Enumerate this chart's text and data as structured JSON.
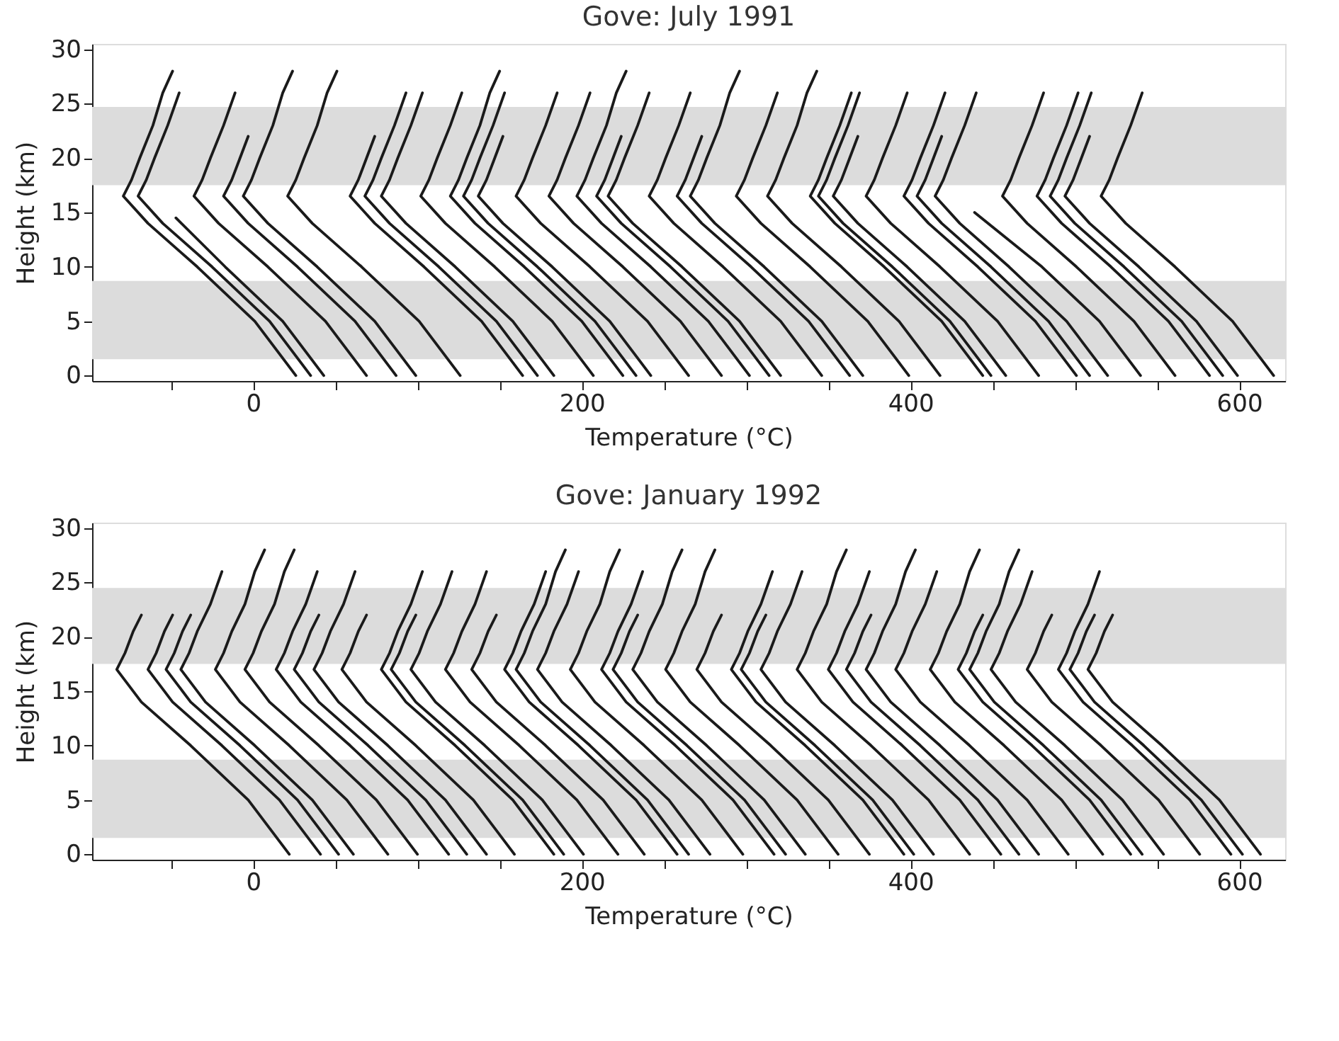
{
  "chart_data": [
    {
      "type": "line",
      "title": "Gove: July 1991",
      "xlabel": "Temperature (°C)",
      "ylabel": "Height (km)",
      "color": "#1a1a1a",
      "xlim": [
        -98,
        628
      ],
      "ylim": [
        -0.5,
        30.5
      ],
      "xticks": [
        {
          "value": -50,
          "label": null
        },
        0,
        {
          "value": 50,
          "label": null
        },
        {
          "value": 100,
          "label": null
        },
        {
          "value": 150,
          "label": null
        },
        200,
        {
          "value": 250,
          "label": null
        },
        {
          "value": 300,
          "label": null
        },
        {
          "value": 350,
          "label": null
        },
        400,
        {
          "value": 450,
          "label": null
        },
        {
          "value": 500,
          "label": null
        },
        {
          "value": 550,
          "label": null
        },
        600
      ],
      "yticks": [
        0,
        5,
        10,
        15,
        20,
        25,
        30
      ],
      "bands": [
        {
          "axis": "y",
          "from": 1.5,
          "to": 8.7,
          "color": "#dcdcdc"
        },
        {
          "axis": "y",
          "from": 17.5,
          "to": 24.7,
          "color": "#dcdcdc"
        }
      ],
      "series": [
        {
          "x": [
            26,
            1,
            -34,
            -64,
            -79,
            -74,
            -69,
            -61,
            -55,
            -49
          ],
          "values": [
            0,
            5,
            10,
            14,
            16.5,
            18,
            20,
            23,
            26,
            28
          ]
        },
        {
          "x": [
            35,
            10,
            -25,
            -55,
            -70,
            -65,
            -60,
            -52,
            -45
          ],
          "values": [
            0,
            5,
            10,
            14,
            16.5,
            18,
            20,
            23,
            26
          ]
        },
        {
          "x": [
            43,
            18,
            -17,
            -47
          ],
          "values": [
            0,
            5,
            10,
            14.5
          ]
        },
        {
          "x": [
            69,
            44,
            9,
            -21,
            -36,
            -31,
            -26,
            -18,
            -11
          ],
          "values": [
            0,
            5,
            10,
            14,
            16.5,
            18,
            20,
            23,
            26
          ]
        },
        {
          "x": [
            87,
            62,
            27,
            -3,
            -18,
            -13,
            -8,
            -3
          ],
          "values": [
            0,
            5,
            10,
            14,
            16.5,
            18,
            20,
            22
          ]
        },
        {
          "x": [
            99,
            74,
            39,
            9,
            -6,
            -1,
            4,
            12,
            18,
            24
          ],
          "values": [
            0,
            5,
            10,
            14,
            16.5,
            18,
            20,
            23,
            26,
            28
          ]
        },
        {
          "x": [
            126,
            101,
            66,
            36,
            21,
            26,
            31,
            39,
            45,
            51
          ],
          "values": [
            0,
            5,
            10,
            14,
            16.5,
            18,
            20,
            23,
            26,
            28
          ]
        },
        {
          "x": [
            164,
            139,
            104,
            74,
            59,
            64,
            69,
            74
          ],
          "values": [
            0,
            5,
            10,
            14,
            16.5,
            18,
            20,
            22
          ]
        },
        {
          "x": [
            173,
            148,
            113,
            83,
            68,
            73,
            78,
            86,
            93
          ],
          "values": [
            0,
            5,
            10,
            14,
            16.5,
            18,
            20,
            23,
            26
          ]
        },
        {
          "x": [
            183,
            158,
            123,
            93,
            78,
            83,
            88,
            96,
            103
          ],
          "values": [
            0,
            5,
            10,
            14,
            16.5,
            18,
            20,
            23,
            26
          ]
        },
        {
          "x": [
            207,
            182,
            147,
            117,
            102,
            107,
            112,
            120,
            127
          ],
          "values": [
            0,
            5,
            10,
            14,
            16.5,
            18,
            20,
            23,
            26
          ]
        },
        {
          "x": [
            225,
            200,
            165,
            135,
            120,
            125,
            130,
            138,
            144,
            150
          ],
          "values": [
            0,
            5,
            10,
            14,
            16.5,
            18,
            20,
            23,
            26,
            28
          ]
        },
        {
          "x": [
            233,
            208,
            173,
            143,
            128,
            133,
            138,
            146,
            153
          ],
          "values": [
            0,
            5,
            10,
            14,
            16.5,
            18,
            20,
            23,
            26
          ]
        },
        {
          "x": [
            242,
            217,
            182,
            152,
            137,
            142,
            147,
            152
          ],
          "values": [
            0,
            5,
            10,
            14,
            16.5,
            18,
            20,
            22
          ]
        },
        {
          "x": [
            265,
            240,
            205,
            175,
            160,
            165,
            170,
            178,
            185
          ],
          "values": [
            0,
            5,
            10,
            14,
            16.5,
            18,
            20,
            23,
            26
          ]
        },
        {
          "x": [
            285,
            260,
            225,
            195,
            180,
            185,
            190,
            198,
            205
          ],
          "values": [
            0,
            5,
            10,
            14,
            16.5,
            18,
            20,
            23,
            26
          ]
        },
        {
          "x": [
            302,
            277,
            242,
            212,
            197,
            202,
            207,
            215,
            221,
            227
          ],
          "values": [
            0,
            5,
            10,
            14,
            16.5,
            18,
            20,
            23,
            26,
            28
          ]
        },
        {
          "x": [
            314,
            289,
            254,
            224,
            209,
            214,
            219,
            224
          ],
          "values": [
            0,
            5,
            10,
            14,
            16.5,
            18,
            20,
            22
          ]
        },
        {
          "x": [
            321,
            296,
            261,
            231,
            216,
            221,
            226,
            234,
            241
          ],
          "values": [
            0,
            5,
            10,
            14,
            16.5,
            18,
            20,
            23,
            26
          ]
        },
        {
          "x": [
            346,
            321,
            286,
            256,
            241,
            246,
            251,
            259,
            266
          ],
          "values": [
            0,
            5,
            10,
            14,
            16.5,
            18,
            20,
            23,
            26
          ]
        },
        {
          "x": [
            363,
            338,
            303,
            273,
            258,
            263,
            268,
            273
          ],
          "values": [
            0,
            5,
            10,
            14,
            16.5,
            18,
            20,
            22
          ]
        },
        {
          "x": [
            371,
            346,
            311,
            281,
            266,
            271,
            276,
            284,
            290,
            296
          ],
          "values": [
            0,
            5,
            10,
            14,
            16.5,
            18,
            20,
            23,
            26,
            28
          ]
        },
        {
          "x": [
            399,
            374,
            339,
            309,
            294,
            299,
            304,
            312,
            319
          ],
          "values": [
            0,
            5,
            10,
            14,
            16.5,
            18,
            20,
            23,
            26
          ]
        },
        {
          "x": [
            418,
            393,
            358,
            328,
            313,
            318,
            323,
            331,
            337,
            343
          ],
          "values": [
            0,
            5,
            10,
            14,
            16.5,
            18,
            20,
            23,
            26,
            28
          ]
        },
        {
          "x": [
            444,
            419,
            384,
            354,
            339,
            344,
            349,
            357,
            364
          ],
          "values": [
            0,
            5,
            10,
            14,
            16.5,
            18,
            20,
            23,
            26
          ]
        },
        {
          "x": [
            449,
            424,
            389,
            359,
            344,
            349,
            354,
            362,
            369
          ],
          "values": [
            0,
            5,
            10,
            14,
            16.5,
            18,
            20,
            23,
            26
          ]
        },
        {
          "x": [
            458,
            433,
            398,
            368,
            353,
            358,
            363,
            368
          ],
          "values": [
            0,
            5,
            10,
            14,
            16.5,
            18,
            20,
            22
          ]
        },
        {
          "x": [
            478,
            453,
            418,
            388,
            373,
            378,
            383,
            391,
            398
          ],
          "values": [
            0,
            5,
            10,
            14,
            16.5,
            18,
            20,
            23,
            26
          ]
        },
        {
          "x": [
            501,
            476,
            441,
            411,
            396,
            401,
            406,
            414,
            421
          ],
          "values": [
            0,
            5,
            10,
            14,
            16.5,
            18,
            20,
            23,
            26
          ]
        },
        {
          "x": [
            509,
            484,
            449,
            419,
            404,
            409,
            414,
            419
          ],
          "values": [
            0,
            5,
            10,
            14,
            16.5,
            18,
            20,
            22
          ]
        },
        {
          "x": [
            520,
            495,
            460,
            430,
            415,
            420,
            425,
            433,
            440
          ],
          "values": [
            0,
            5,
            10,
            14,
            16.5,
            18,
            20,
            23,
            26
          ]
        },
        {
          "x": [
            540,
            515,
            480,
            439
          ],
          "values": [
            0,
            5,
            10,
            15
          ]
        },
        {
          "x": [
            561,
            536,
            501,
            471,
            456,
            461,
            466,
            474,
            481
          ],
          "values": [
            0,
            5,
            10,
            14,
            16.5,
            18,
            20,
            23,
            26
          ]
        },
        {
          "x": [
            582,
            557,
            522,
            492,
            477,
            482,
            487,
            495,
            502
          ],
          "values": [
            0,
            5,
            10,
            14,
            16.5,
            18,
            20,
            23,
            26
          ]
        },
        {
          "x": [
            590,
            565,
            530,
            500,
            485,
            490,
            495,
            503,
            510
          ],
          "values": [
            0,
            5,
            10,
            14,
            16.5,
            18,
            20,
            23,
            26
          ]
        },
        {
          "x": [
            599,
            574,
            539,
            509,
            494,
            499,
            504,
            509
          ],
          "values": [
            0,
            5,
            10,
            14,
            16.5,
            18,
            20,
            22
          ]
        },
        {
          "x": [
            621,
            596,
            561,
            531,
            516,
            521,
            526,
            534,
            541
          ],
          "values": [
            0,
            5,
            10,
            14,
            16.5,
            18,
            20,
            23,
            26
          ]
        }
      ]
    },
    {
      "type": "line",
      "title": "Gove: January 1992",
      "xlabel": "Temperature (°C)",
      "ylabel": "Height (km)",
      "color": "#1a1a1a",
      "xlim": [
        -98,
        628
      ],
      "ylim": [
        -0.5,
        30.5
      ],
      "xticks": [
        {
          "value": -50,
          "label": null
        },
        0,
        {
          "value": 50,
          "label": null
        },
        {
          "value": 100,
          "label": null
        },
        {
          "value": 150,
          "label": null
        },
        200,
        {
          "value": 250,
          "label": null
        },
        {
          "value": 300,
          "label": null
        },
        {
          "value": 350,
          "label": null
        },
        400,
        {
          "value": 450,
          "label": null
        },
        {
          "value": 500,
          "label": null
        },
        {
          "value": 550,
          "label": null
        },
        600
      ],
      "yticks": [
        0,
        5,
        10,
        15,
        20,
        25,
        30
      ],
      "bands": [
        {
          "axis": "y",
          "from": 1.5,
          "to": 8.7,
          "color": "#dcdcdc"
        },
        {
          "axis": "y",
          "from": 17.5,
          "to": 24.5,
          "color": "#dcdcdc"
        }
      ],
      "series": [
        {
          "x": [
            22,
            -3,
            -38,
            -68,
            -83,
            -78,
            -73,
            -68
          ],
          "values": [
            0,
            5,
            10,
            14,
            17,
            18.5,
            20.5,
            22
          ]
        },
        {
          "x": [
            41,
            16,
            -19,
            -49,
            -64,
            -59,
            -54,
            -49
          ],
          "values": [
            0,
            5,
            10,
            14,
            17,
            18.5,
            20.5,
            22
          ]
        },
        {
          "x": [
            52,
            27,
            -8,
            -38,
            -53,
            -48,
            -43,
            -38
          ],
          "values": [
            0,
            5,
            10,
            14,
            17,
            18.5,
            20.5,
            22
          ]
        },
        {
          "x": [
            61,
            36,
            1,
            -29,
            -44,
            -39,
            -34,
            -26,
            -19
          ],
          "values": [
            0,
            5,
            10,
            14,
            17,
            18.5,
            20.5,
            23,
            26
          ]
        },
        {
          "x": [
            82,
            57,
            22,
            -8,
            -23,
            -18,
            -13,
            -5,
            1,
            7
          ],
          "values": [
            0,
            5,
            10,
            14,
            17,
            18.5,
            20.5,
            23,
            26,
            28
          ]
        },
        {
          "x": [
            100,
            75,
            40,
            10,
            -5,
            0,
            5,
            13,
            19,
            25
          ],
          "values": [
            0,
            5,
            10,
            14,
            17,
            18.5,
            20.5,
            23,
            26,
            28
          ]
        },
        {
          "x": [
            119,
            94,
            59,
            29,
            14,
            19,
            24,
            32,
            39
          ],
          "values": [
            0,
            5,
            10,
            14,
            17,
            18.5,
            20.5,
            23,
            26
          ]
        },
        {
          "x": [
            130,
            105,
            70,
            40,
            25,
            30,
            35,
            40
          ],
          "values": [
            0,
            5,
            10,
            14,
            17,
            18.5,
            20.5,
            22
          ]
        },
        {
          "x": [
            142,
            117,
            82,
            52,
            37,
            42,
            47,
            55,
            62
          ],
          "values": [
            0,
            5,
            10,
            14,
            17,
            18.5,
            20.5,
            23,
            26
          ]
        },
        {
          "x": [
            159,
            134,
            99,
            69,
            54,
            59,
            64,
            69
          ],
          "values": [
            0,
            5,
            10,
            14,
            17,
            18.5,
            20.5,
            22
          ]
        },
        {
          "x": [
            183,
            158,
            123,
            93,
            78,
            83,
            88,
            96,
            103
          ],
          "values": [
            0,
            5,
            10,
            14,
            17,
            18.5,
            20.5,
            23,
            26
          ]
        },
        {
          "x": [
            189,
            164,
            129,
            99,
            84,
            89,
            94,
            99
          ],
          "values": [
            0,
            5,
            10,
            14,
            17,
            18.5,
            20.5,
            22
          ]
        },
        {
          "x": [
            201,
            176,
            141,
            111,
            96,
            101,
            106,
            114,
            121
          ],
          "values": [
            0,
            5,
            10,
            14,
            17,
            18.5,
            20.5,
            23,
            26
          ]
        },
        {
          "x": [
            222,
            197,
            162,
            132,
            117,
            122,
            127,
            135,
            142
          ],
          "values": [
            0,
            5,
            10,
            14,
            17,
            18.5,
            20.5,
            23,
            26
          ]
        },
        {
          "x": [
            238,
            213,
            178,
            148,
            133,
            138,
            143,
            148
          ],
          "values": [
            0,
            5,
            10,
            14,
            17,
            18.5,
            20.5,
            22
          ]
        },
        {
          "x": [
            258,
            233,
            198,
            168,
            153,
            158,
            163,
            171,
            178
          ],
          "values": [
            0,
            5,
            10,
            14,
            17,
            18.5,
            20.5,
            23,
            26
          ]
        },
        {
          "x": [
            265,
            240,
            205,
            175,
            160,
            165,
            170,
            178,
            184,
            190
          ],
          "values": [
            0,
            5,
            10,
            14,
            17,
            18.5,
            20.5,
            23,
            26,
            28
          ]
        },
        {
          "x": [
            278,
            253,
            218,
            188,
            173,
            178,
            183,
            191,
            198
          ],
          "values": [
            0,
            5,
            10,
            14,
            17,
            18.5,
            20.5,
            23,
            26
          ]
        },
        {
          "x": [
            298,
            273,
            238,
            208,
            193,
            198,
            203,
            211,
            217,
            223
          ],
          "values": [
            0,
            5,
            10,
            14,
            17,
            18.5,
            20.5,
            23,
            26,
            28
          ]
        },
        {
          "x": [
            317,
            292,
            257,
            227,
            212,
            217,
            222,
            230,
            237
          ],
          "values": [
            0,
            5,
            10,
            14,
            17,
            18.5,
            20.5,
            23,
            26
          ]
        },
        {
          "x": [
            324,
            299,
            264,
            234,
            219,
            224,
            229,
            234
          ],
          "values": [
            0,
            5,
            10,
            14,
            17,
            18.5,
            20.5,
            22
          ]
        },
        {
          "x": [
            336,
            311,
            276,
            246,
            231,
            236,
            241,
            249,
            255,
            261
          ],
          "values": [
            0,
            5,
            10,
            14,
            17,
            18.5,
            20.5,
            23,
            26,
            28
          ]
        },
        {
          "x": [
            356,
            331,
            296,
            266,
            251,
            256,
            261,
            269,
            275,
            281
          ],
          "values": [
            0,
            5,
            10,
            14,
            17,
            18.5,
            20.5,
            23,
            26,
            28
          ]
        },
        {
          "x": [
            375,
            350,
            315,
            285,
            270,
            275,
            280,
            285
          ],
          "values": [
            0,
            5,
            10,
            14,
            17,
            18.5,
            20.5,
            22
          ]
        },
        {
          "x": [
            396,
            371,
            336,
            306,
            291,
            296,
            301,
            309,
            316
          ],
          "values": [
            0,
            5,
            10,
            14,
            17,
            18.5,
            20.5,
            23,
            26
          ]
        },
        {
          "x": [
            402,
            377,
            342,
            312,
            297,
            302,
            307,
            312
          ],
          "values": [
            0,
            5,
            10,
            14,
            17,
            18.5,
            20.5,
            22
          ]
        },
        {
          "x": [
            414,
            389,
            354,
            324,
            309,
            314,
            319,
            327,
            334
          ],
          "values": [
            0,
            5,
            10,
            14,
            17,
            18.5,
            20.5,
            23,
            26
          ]
        },
        {
          "x": [
            436,
            411,
            376,
            346,
            331,
            336,
            341,
            349,
            355,
            361
          ],
          "values": [
            0,
            5,
            10,
            14,
            17,
            18.5,
            20.5,
            23,
            26,
            28
          ]
        },
        {
          "x": [
            455,
            430,
            395,
            365,
            350,
            355,
            360,
            368,
            375
          ],
          "values": [
            0,
            5,
            10,
            14,
            17,
            18.5,
            20.5,
            23,
            26
          ]
        },
        {
          "x": [
            466,
            441,
            406,
            376,
            361,
            366,
            371,
            376
          ],
          "values": [
            0,
            5,
            10,
            14,
            17,
            18.5,
            20.5,
            22
          ]
        },
        {
          "x": [
            478,
            453,
            418,
            388,
            373,
            378,
            383,
            391,
            397,
            403
          ],
          "values": [
            0,
            5,
            10,
            14,
            17,
            18.5,
            20.5,
            23,
            26,
            28
          ]
        },
        {
          "x": [
            496,
            471,
            436,
            406,
            391,
            396,
            401,
            409,
            416
          ],
          "values": [
            0,
            5,
            10,
            14,
            17,
            18.5,
            20.5,
            23,
            26
          ]
        },
        {
          "x": [
            517,
            492,
            457,
            427,
            412,
            417,
            422,
            430,
            436,
            442
          ],
          "values": [
            0,
            5,
            10,
            14,
            17,
            18.5,
            20.5,
            23,
            26,
            28
          ]
        },
        {
          "x": [
            534,
            509,
            474,
            444,
            429,
            434,
            439,
            444
          ],
          "values": [
            0,
            5,
            10,
            14,
            17,
            18.5,
            20.5,
            22
          ]
        },
        {
          "x": [
            541,
            516,
            481,
            451,
            436,
            441,
            446,
            454,
            460,
            466
          ],
          "values": [
            0,
            5,
            10,
            14,
            17,
            18.5,
            20.5,
            23,
            26,
            28
          ]
        },
        {
          "x": [
            554,
            529,
            494,
            464,
            449,
            454,
            459,
            467,
            474
          ],
          "values": [
            0,
            5,
            10,
            14,
            17,
            18.5,
            20.5,
            23,
            26
          ]
        },
        {
          "x": [
            576,
            551,
            516,
            486,
            471,
            476,
            481,
            486
          ],
          "values": [
            0,
            5,
            10,
            14,
            17,
            18.5,
            20.5,
            22
          ]
        },
        {
          "x": [
            595,
            570,
            535,
            505,
            490,
            495,
            500,
            508,
            515
          ],
          "values": [
            0,
            5,
            10,
            14,
            17,
            18.5,
            20.5,
            23,
            26
          ]
        },
        {
          "x": [
            602,
            577,
            542,
            512,
            497,
            502,
            507,
            512
          ],
          "values": [
            0,
            5,
            10,
            14,
            17,
            18.5,
            20.5,
            22
          ]
        },
        {
          "x": [
            613,
            588,
            553,
            523,
            508,
            513,
            518,
            523
          ],
          "values": [
            0,
            5,
            10,
            14,
            17,
            18.5,
            20.5,
            22
          ]
        }
      ]
    }
  ]
}
